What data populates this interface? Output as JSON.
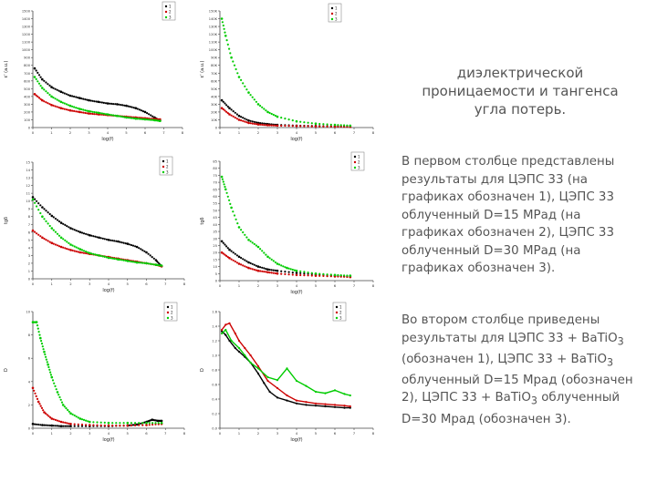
{
  "title": {
    "lines": [
      "диэлектрической",
      "проницаемости и тангенса",
      "угла потерь."
    ]
  },
  "text": {
    "p1": "В первом столбце представлены результаты для ЦЭПС 33 (на графиках обозначен 1), ЦЭПС 33 облученный D=15 МРад (на графиках обозначен 2), ЦЭПС 33 облученный D=30 МРад (на графиках обозначен 3).",
    "p2a": "Во втором столбце приведены результаты для ЦЭПС 33 + BaTiO",
    "p2b": " (обозначен 1), ЦЭПС 33 + BaTiO",
    "p2c": " облученный D=15 Мрад (обозначен 2), ЦЭПС 33 + BaTiO",
    "p2d": " облученный D=30 Мрад (обозначен 3).",
    "sub": "3"
  },
  "colors": {
    "s1": "#000000",
    "s2": "#cc0000",
    "s3": "#00cc00",
    "axis": "#444444"
  },
  "chart_data": [
    {
      "type": "scatter",
      "xlabel": "log(f)",
      "ylabel": "ε' (a.u.)",
      "xticks": [
        "0",
        "1",
        "2",
        "3",
        "4",
        "5",
        "6",
        "7",
        "8"
      ],
      "yticks": [
        "0",
        "100",
        "200",
        "300",
        "400",
        "500",
        "600",
        "700",
        "800",
        "900",
        "1000",
        "1100",
        "1200",
        "1300",
        "1400",
        "1500"
      ],
      "xlim": [
        0,
        8
      ],
      "ylim": [
        0,
        1500
      ],
      "legend": [
        "1",
        "2",
        "3"
      ],
      "series": [
        {
          "name": "1",
          "x": [
            0.1,
            0.5,
            1,
            1.5,
            2,
            2.5,
            3,
            3.5,
            4,
            4.5,
            5,
            5.5,
            6,
            6.5,
            6.8
          ],
          "y": [
            760,
            620,
            520,
            460,
            410,
            380,
            350,
            330,
            310,
            300,
            280,
            250,
            200,
            130,
            90
          ]
        },
        {
          "name": "2",
          "x": [
            0.1,
            0.5,
            1,
            1.5,
            2,
            2.5,
            3,
            3.5,
            4,
            4.5,
            5,
            5.5,
            6,
            6.5,
            6.8
          ],
          "y": [
            430,
            350,
            290,
            250,
            220,
            200,
            180,
            170,
            160,
            150,
            140,
            130,
            120,
            110,
            105
          ]
        },
        {
          "name": "3",
          "x": [
            0.1,
            0.5,
            1,
            1.5,
            2,
            2.5,
            3,
            3.5,
            4,
            4.5,
            5,
            5.5,
            6,
            6.5,
            6.8
          ],
          "y": [
            650,
            510,
            400,
            330,
            280,
            240,
            210,
            190,
            170,
            150,
            130,
            115,
            105,
            95,
            85
          ]
        }
      ]
    },
    {
      "type": "scatter",
      "xlabel": "log(f)",
      "ylabel": "ε' (a.u.)",
      "xticks": [
        "0",
        "1",
        "2",
        "3",
        "4",
        "5",
        "6",
        "7",
        "8"
      ],
      "yticks": [
        "0",
        "10K",
        "20K",
        "30K",
        "40K",
        "50K",
        "60K",
        "70K",
        "80K",
        "90K",
        "100K",
        "110K",
        "120K",
        "130K",
        "140K",
        "150K"
      ],
      "xlim": [
        0,
        8
      ],
      "ylim": [
        0,
        150000
      ],
      "legend": [
        "1",
        "2",
        "3"
      ],
      "series": [
        {
          "name": "1",
          "x": [
            0.1,
            0.5,
            1,
            1.5,
            2,
            2.5,
            3,
            4,
            5,
            6,
            6.8
          ],
          "y": [
            35000,
            25000,
            15000,
            9000,
            6000,
            4500,
            3500,
            2500,
            2000,
            1500,
            1200
          ]
        },
        {
          "name": "2",
          "x": [
            0.1,
            0.5,
            1,
            1.5,
            2,
            2.5,
            3,
            4,
            5,
            6,
            6.8
          ],
          "y": [
            25000,
            17000,
            10000,
            6000,
            4000,
            3000,
            2500,
            2000,
            1500,
            1200,
            1000
          ]
        },
        {
          "name": "3",
          "x": [
            0.1,
            0.3,
            0.6,
            1,
            1.5,
            2,
            2.5,
            3,
            4,
            5,
            6,
            6.8
          ],
          "y": [
            140000,
            118000,
            90000,
            65000,
            45000,
            30000,
            20000,
            14000,
            8000,
            5000,
            3500,
            2500
          ]
        }
      ]
    },
    {
      "type": "scatter",
      "xlabel": "log(f)",
      "ylabel": "tgδ",
      "xticks": [
        "0",
        "1",
        "2",
        "3",
        "4",
        "5",
        "6",
        "7",
        "8"
      ],
      "yticks": [
        "0",
        "1",
        "2",
        "3",
        "4",
        "5",
        "6",
        "7",
        "8",
        "9",
        "10",
        "11",
        "12",
        "13",
        "14",
        "15"
      ],
      "xlim": [
        0,
        8
      ],
      "ylim": [
        0,
        15
      ],
      "legend": [
        "1",
        "2",
        "3"
      ],
      "series": [
        {
          "name": "1",
          "x": [
            0,
            0.5,
            1,
            1.5,
            2,
            2.5,
            3,
            3.5,
            4,
            4.5,
            5,
            5.5,
            6,
            6.5,
            6.8
          ],
          "y": [
            10.5,
            9.2,
            8.1,
            7.2,
            6.5,
            6.0,
            5.6,
            5.3,
            5.0,
            4.8,
            4.5,
            4.1,
            3.4,
            2.4,
            1.6
          ]
        },
        {
          "name": "2",
          "x": [
            0,
            0.5,
            1,
            1.5,
            2,
            2.5,
            3,
            3.5,
            4,
            4.5,
            5,
            5.5,
            6,
            6.5,
            6.8
          ],
          "y": [
            6.2,
            5.3,
            4.6,
            4.1,
            3.7,
            3.4,
            3.2,
            3.0,
            2.8,
            2.6,
            2.4,
            2.2,
            2.0,
            1.8,
            1.6
          ]
        },
        {
          "name": "3",
          "x": [
            0,
            0.5,
            1,
            1.5,
            2,
            2.5,
            3,
            3.5,
            4,
            4.5,
            5,
            5.5,
            6,
            6.5,
            6.8
          ],
          "y": [
            10.2,
            8.0,
            6.5,
            5.3,
            4.4,
            3.8,
            3.3,
            3.0,
            2.7,
            2.5,
            2.3,
            2.1,
            2.0,
            1.8,
            1.7
          ]
        }
      ]
    },
    {
      "type": "scatter",
      "xlabel": "log(f)",
      "ylabel": "tgδ",
      "xticks": [
        "0",
        "1",
        "2",
        "3",
        "4",
        "5",
        "6",
        "7",
        "8"
      ],
      "yticks": [
        "0",
        "5",
        "10",
        "15",
        "20",
        "25",
        "30",
        "35",
        "40",
        "45",
        "50",
        "55",
        "60",
        "65",
        "70",
        "75",
        "80",
        "85"
      ],
      "xlim": [
        0,
        8
      ],
      "ylim": [
        0,
        85
      ],
      "legend": [
        "1",
        "2",
        "3"
      ],
      "series": [
        {
          "name": "1",
          "x": [
            0.1,
            0.5,
            1,
            1.5,
            2,
            2.5,
            3,
            4,
            5,
            6,
            6.8
          ],
          "y": [
            28,
            22,
            17,
            13,
            10,
            8,
            7,
            5.5,
            4.5,
            3.5,
            3
          ]
        },
        {
          "name": "2",
          "x": [
            0.1,
            0.5,
            1,
            1.5,
            2,
            2.5,
            3,
            4,
            5,
            6,
            6.8
          ],
          "y": [
            20,
            16,
            12,
            9,
            7,
            6,
            5,
            4,
            3.5,
            3,
            2.5
          ]
        },
        {
          "name": "3",
          "x": [
            0.1,
            0.3,
            0.6,
            1,
            1.5,
            2,
            2.5,
            3,
            3.5,
            4,
            5,
            6,
            6.8
          ],
          "y": [
            74,
            65,
            52,
            38,
            29,
            24,
            17,
            12,
            9,
            7,
            5,
            4,
            3.5
          ]
        }
      ]
    },
    {
      "type": "scatter",
      "xlabel": "log(f)",
      "ylabel": "D",
      "xticks": [
        "0",
        "1",
        "2",
        "3",
        "4",
        "5",
        "6",
        "7",
        "8"
      ],
      "yticks": [
        "0",
        "2",
        "4",
        "6",
        "8",
        "10"
      ],
      "xlim": [
        0,
        8
      ],
      "ylim": [
        0,
        11
      ],
      "legend": [
        "1",
        "2",
        "3"
      ],
      "series": [
        {
          "name": "1",
          "x": [
            0,
            0.5,
            1,
            1.5,
            2,
            3,
            4,
            5,
            5.5,
            6,
            6.3,
            6.6,
            6.8
          ],
          "y": [
            0.4,
            0.3,
            0.25,
            0.2,
            0.2,
            0.2,
            0.2,
            0.25,
            0.35,
            0.6,
            0.8,
            0.7,
            0.7
          ]
        },
        {
          "name": "2",
          "x": [
            0,
            0.3,
            0.6,
            1,
            1.5,
            2,
            3,
            4,
            5,
            6,
            6.8
          ],
          "y": [
            3.8,
            2.5,
            1.5,
            0.9,
            0.6,
            0.4,
            0.3,
            0.25,
            0.25,
            0.3,
            0.4
          ]
        },
        {
          "name": "3",
          "x": [
            0,
            0.2,
            0.4,
            0.6,
            0.8,
            1,
            1.3,
            1.6,
            2,
            2.5,
            3,
            4,
            5,
            6,
            6.8
          ],
          "y": [
            10,
            10,
            8.5,
            7.2,
            6,
            4.8,
            3.4,
            2.2,
            1.4,
            0.9,
            0.6,
            0.5,
            0.5,
            0.5,
            0.5
          ]
        }
      ]
    },
    {
      "type": "line",
      "xlabel": "log(f)",
      "ylabel": "D",
      "xticks": [
        "0",
        "1",
        "2",
        "3",
        "4",
        "5",
        "6",
        "7",
        "8"
      ],
      "yticks": [
        "0.0",
        "0.2",
        "0.4",
        "0.6",
        "0.8",
        "1.0",
        "1.2",
        "1.4",
        "1.6"
      ],
      "xlim": [
        0,
        8
      ],
      "ylim": [
        0,
        1.6
      ],
      "legend": [
        "1",
        "2",
        "3"
      ],
      "series": [
        {
          "name": "1",
          "x": [
            0.1,
            0.3,
            0.5,
            0.8,
            1,
            1.3,
            1.6,
            2,
            2.3,
            2.6,
            3,
            3.5,
            4,
            4.5,
            5,
            5.5,
            6,
            6.5,
            6.8
          ],
          "y": [
            1.33,
            1.28,
            1.2,
            1.1,
            1.05,
            0.98,
            0.9,
            0.75,
            0.62,
            0.5,
            0.42,
            0.38,
            0.34,
            0.32,
            0.31,
            0.3,
            0.29,
            0.28,
            0.28
          ]
        },
        {
          "name": "2",
          "x": [
            0.1,
            0.3,
            0.5,
            0.8,
            1,
            1.3,
            1.6,
            2,
            2.5,
            3,
            3.5,
            4,
            4.5,
            5,
            5.5,
            6,
            6.5,
            6.8
          ],
          "y": [
            1.35,
            1.42,
            1.44,
            1.3,
            1.2,
            1.1,
            1.0,
            0.85,
            0.65,
            0.55,
            0.45,
            0.38,
            0.36,
            0.34,
            0.33,
            0.32,
            0.31,
            0.3
          ]
        },
        {
          "name": "3",
          "x": [
            0.1,
            0.3,
            0.6,
            1,
            1.3,
            1.6,
            2,
            2.5,
            3,
            3.5,
            4,
            4.5,
            5,
            5.5,
            6,
            6.5,
            6.8
          ],
          "y": [
            1.3,
            1.35,
            1.2,
            1.1,
            1.0,
            0.9,
            0.82,
            0.7,
            0.66,
            0.82,
            0.65,
            0.58,
            0.5,
            0.48,
            0.52,
            0.47,
            0.45
          ]
        }
      ]
    }
  ]
}
